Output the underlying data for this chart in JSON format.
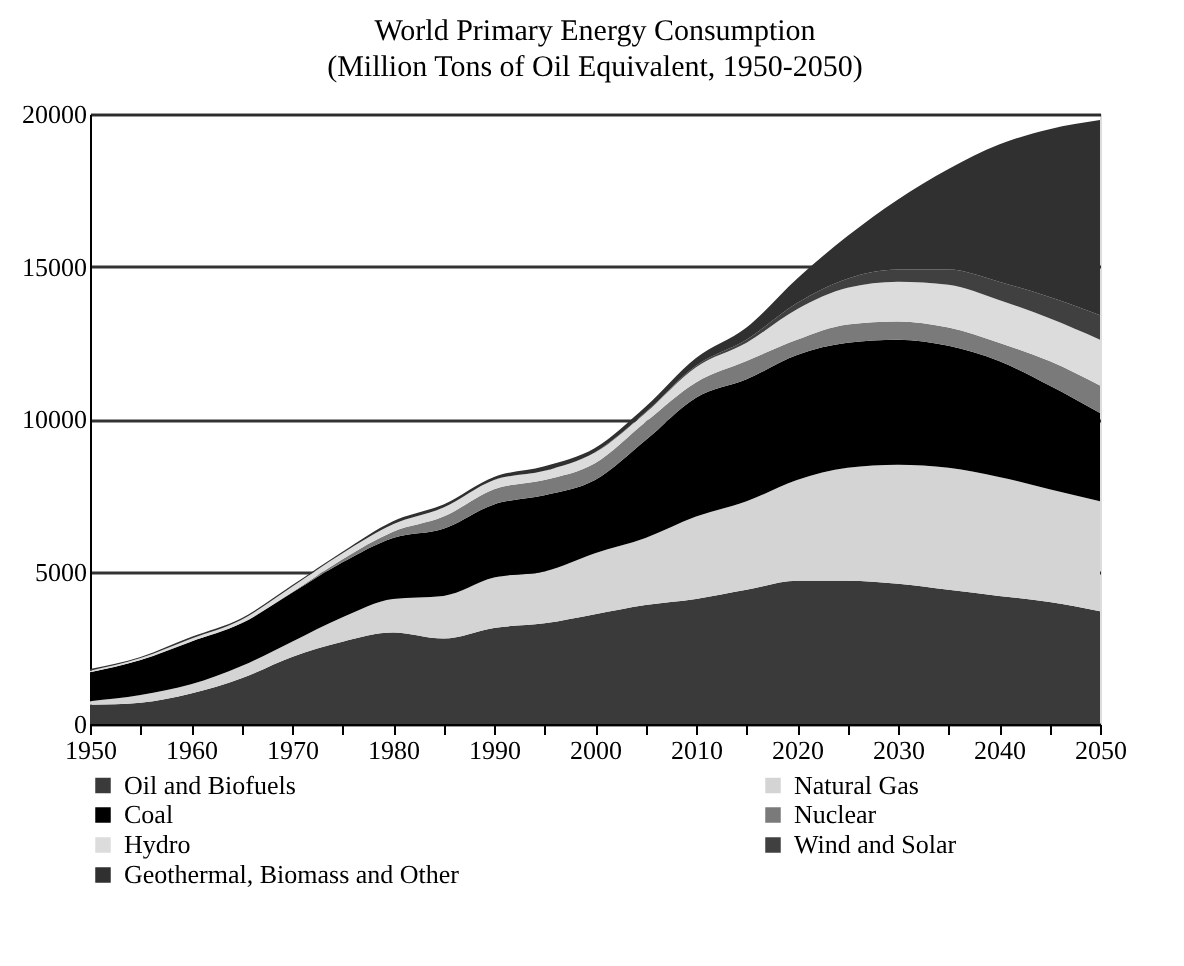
{
  "chart_data": {
    "type": "area",
    "title": "World Primary Energy Consumption",
    "subtitle": "(Million Tons of Oil Equivalent, 1950-2050)",
    "x": [
      1950,
      1955,
      1960,
      1965,
      1970,
      1975,
      1980,
      1985,
      1990,
      1995,
      2000,
      2005,
      2010,
      2015,
      2020,
      2025,
      2030,
      2035,
      2040,
      2045,
      2050
    ],
    "stacked": true,
    "series": [
      {
        "name": "Oil and Biofuels",
        "color": "#3a3a3a",
        "values": [
          630,
          700,
          1000,
          1500,
          2200,
          2700,
          3000,
          2800,
          3150,
          3300,
          3600,
          3900,
          4100,
          4400,
          4700,
          4700,
          4600,
          4400,
          4200,
          4000,
          3700
        ]
      },
      {
        "name": "Natural Gas",
        "color": "#d4d4d4",
        "values": [
          120,
          250,
          300,
          400,
          500,
          800,
          1100,
          1400,
          1650,
          1700,
          2000,
          2200,
          2700,
          2900,
          3300,
          3700,
          3900,
          4000,
          3900,
          3700,
          3600
        ]
      },
      {
        "name": "Coal",
        "color": "#000000",
        "values": [
          950,
          1150,
          1400,
          1400,
          1600,
          1800,
          2000,
          2200,
          2400,
          2500,
          2400,
          3200,
          3900,
          4000,
          4100,
          4100,
          4100,
          4000,
          3800,
          3400,
          2900
        ]
      },
      {
        "name": "Nuclear",
        "color": "#7a7a7a",
        "values": [
          0,
          0,
          5,
          10,
          20,
          100,
          200,
          400,
          500,
          500,
          550,
          600,
          500,
          600,
          500,
          600,
          600,
          600,
          600,
          800,
          900
        ]
      },
      {
        "name": "Hydro",
        "color": "#dcdcdc",
        "values": [
          50,
          60,
          90,
          110,
          180,
          200,
          250,
          300,
          300,
          300,
          350,
          300,
          500,
          600,
          1000,
          1200,
          1300,
          1400,
          1400,
          1400,
          1500
        ]
      },
      {
        "name": "Wind and Solar",
        "color": "#404040",
        "values": [
          0,
          0,
          0,
          0,
          0,
          0,
          0,
          0,
          0,
          0,
          10,
          20,
          50,
          100,
          200,
          300,
          400,
          500,
          600,
          700,
          800
        ]
      },
      {
        "name": "Geothermal, Biomass and Other",
        "color": "#303030",
        "values": [
          50,
          40,
          55,
          50,
          50,
          50,
          100,
          100,
          100,
          150,
          140,
          180,
          250,
          400,
          800,
          1400,
          2300,
          3300,
          4500,
          5500,
          6400
        ]
      }
    ],
    "xlim": [
      1950,
      2050
    ],
    "xticks": [
      1950,
      {
        "value": 1955,
        "label": null
      },
      1960,
      {
        "value": 1965,
        "label": null
      },
      1970,
      {
        "value": 1975,
        "label": null
      },
      1980,
      {
        "value": 1985,
        "label": null
      },
      1990,
      {
        "value": 1995,
        "label": null
      },
      2000,
      {
        "value": 2005,
        "label": null
      },
      2010,
      {
        "value": 2015,
        "label": null
      },
      2020,
      {
        "value": 2025,
        "label": null
      },
      2030,
      {
        "value": 2035,
        "label": null
      },
      2040,
      {
        "value": 2045,
        "label": null
      },
      2050
    ],
    "ylim": [
      0,
      20000
    ],
    "yticks": [
      0,
      5000,
      10000,
      15000,
      20000
    ],
    "grid": "y",
    "legend": "bottom"
  }
}
